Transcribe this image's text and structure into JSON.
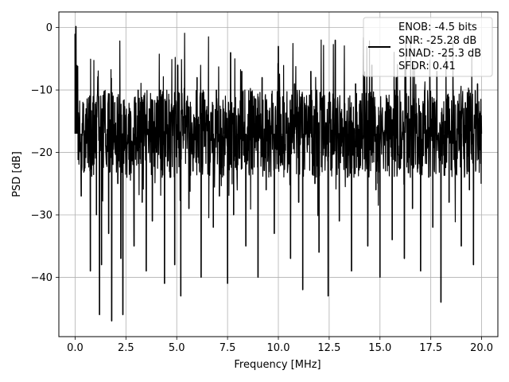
{
  "chart_data": {
    "type": "line",
    "xlabel": "Frequency [MHz]",
    "ylabel": "PSD [dB]",
    "xlim": [
      -0.8,
      20.8
    ],
    "ylim": [
      -49.5,
      2.5
    ],
    "xticks": [
      0.0,
      2.5,
      5.0,
      7.5,
      10.0,
      12.5,
      15.0,
      17.5,
      20.0
    ],
    "xtick_labels": [
      "0.0",
      "2.5",
      "5.0",
      "7.5",
      "10.0",
      "12.5",
      "15.0",
      "17.5",
      "20.0"
    ],
    "yticks": [
      0,
      -10,
      -20,
      -30,
      -40
    ],
    "ytick_labels": [
      "0",
      "−10",
      "−20",
      "−30",
      "−40"
    ],
    "grid": true,
    "legend_position": "top-right",
    "legend_lines": [
      "ENOB: -4.5 bits",
      "SNR: -25.28 dB",
      "SINAD: -25.3 dB",
      "SFDR: 0.41"
    ],
    "series": [
      {
        "color": "#000000",
        "x": [
          0.0,
          0.04,
          0.08,
          0.12,
          0.2,
          0.3,
          0.45,
          0.6,
          0.75,
          0.9,
          1.05,
          1.2,
          1.3,
          1.5,
          1.65,
          1.8,
          1.95,
          2.1,
          2.25,
          2.35,
          2.5,
          2.7,
          2.9,
          3.1,
          3.3,
          3.5,
          3.65,
          3.8,
          4.0,
          4.2,
          4.4,
          4.5,
          4.7,
          4.9,
          5.05,
          5.2,
          5.4,
          5.6,
          5.8,
          6.0,
          6.2,
          6.4,
          6.6,
          6.8,
          6.95,
          7.1,
          7.3,
          7.5,
          7.65,
          7.8,
          8.0,
          8.2,
          8.4,
          8.6,
          8.8,
          9.0,
          9.2,
          9.4,
          9.6,
          9.8,
          10.0,
          10.2,
          10.4,
          10.6,
          10.8,
          11.0,
          11.2,
          11.4,
          11.6,
          11.8,
          12.0,
          12.2,
          12.45,
          12.6,
          12.8,
          13.0,
          13.2,
          13.4,
          13.6,
          13.8,
          14.0,
          14.2,
          14.4,
          14.6,
          14.8,
          15.0,
          15.2,
          15.4,
          15.6,
          15.8,
          16.0,
          16.2,
          16.4,
          16.6,
          16.8,
          17.0,
          17.2,
          17.4,
          17.6,
          17.8,
          18.0,
          18.2,
          18.4,
          18.6,
          18.8,
          19.0,
          19.2,
          19.4,
          19.6,
          19.8,
          20.0
        ],
        "y": [
          -1,
          0.2,
          -8,
          -14,
          -20,
          -27,
          -23,
          -15,
          -39,
          -11,
          -30,
          -46,
          -38,
          -19,
          -33,
          -47,
          -12,
          -25,
          -37,
          -46,
          -14,
          -22,
          -35,
          -10,
          -28,
          -39,
          -13,
          -31,
          -20,
          -10,
          -41,
          -16,
          -24,
          -38,
          -6,
          -43,
          -12,
          -29,
          -23,
          -8,
          -40,
          -19,
          -15,
          -32,
          -10,
          -27,
          -13,
          -41,
          -4,
          -30,
          -22,
          -7,
          -35,
          -18,
          -11,
          -40,
          -8,
          -26,
          -17,
          -33,
          -3,
          -22,
          -14,
          -37,
          -9,
          -28,
          -42,
          -15,
          -7,
          -25,
          -36,
          -11,
          -43,
          -19,
          -2,
          -31,
          -16,
          -24,
          -39,
          -9,
          -21,
          -13,
          -35,
          -6,
          -26,
          -40,
          -17,
          -12,
          -34,
          -8,
          -22,
          -37,
          -11,
          -29,
          -15,
          -39,
          -10,
          -24,
          -32,
          -7,
          -44,
          -15,
          -28,
          -10,
          -21,
          -35,
          -12,
          -26,
          -38,
          -9,
          -17
        ]
      }
    ]
  }
}
